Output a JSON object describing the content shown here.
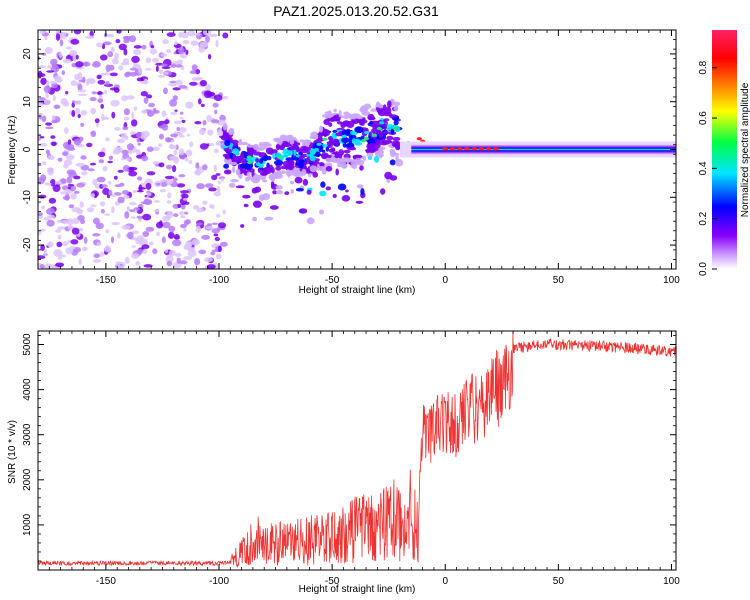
{
  "title": "PAZ1.2025.013.20.52.G31",
  "chart_data": [
    {
      "type": "heatmap",
      "xlabel": "Height of straight line (km)",
      "ylabel": "Frequency (Hz)",
      "xlim": [
        -180,
        102
      ],
      "ylim": [
        -25,
        25
      ],
      "xticks": [
        -150,
        -100,
        -50,
        0,
        50,
        100
      ],
      "yticks": [
        -20,
        -10,
        0,
        10,
        20
      ],
      "colorbar": {
        "label": "Normalized spectral amplitude",
        "range": [
          0,
          0.95
        ],
        "ticks": [
          0.0,
          0.2,
          0.4,
          0.6,
          0.8
        ],
        "tick_labels": [
          "0.0",
          "0.2",
          "0.4",
          "0.6",
          "0.8"
        ],
        "colors": [
          "#ffffff",
          "#cc99ff",
          "#8800ff",
          "#0000ff",
          "#00e5ff",
          "#00ff44",
          "#ffff00",
          "#ff8800",
          "#ff0000",
          "#ff2266"
        ]
      },
      "ridge": {
        "x": [
          -98,
          -90,
          -80,
          -70,
          -60,
          -50,
          -40,
          -30,
          -25,
          -20,
          -10,
          0,
          10,
          20,
          30,
          50,
          80,
          102
        ],
        "y": [
          2,
          -2,
          -3,
          -1,
          -2,
          3,
          2,
          4,
          6,
          3,
          1,
          1,
          0,
          0,
          0,
          0,
          0,
          0
        ]
      },
      "grid": false
    },
    {
      "type": "line",
      "xlabel": "Height of straight line (km)",
      "ylabel": "SNR (10 * v/v)",
      "xlim": [
        -180,
        102
      ],
      "ylim": [
        0,
        5300
      ],
      "xticks": [
        -150,
        -100,
        -50,
        0,
        50,
        100
      ],
      "yticks": [
        1000,
        2000,
        3000,
        4000,
        5000
      ],
      "color": "#ee3333",
      "envelope": {
        "x": [
          -180,
          -100,
          -95,
          -90,
          -85,
          -80,
          -70,
          -60,
          -50,
          -40,
          -30,
          -25,
          -20,
          -15,
          -12,
          -10,
          -8,
          -5,
          0,
          5,
          10,
          15,
          20,
          25,
          30,
          40,
          50,
          60,
          70,
          80,
          90,
          102
        ],
        "y": [
          150,
          150,
          180,
          400,
          700,
          650,
          600,
          700,
          750,
          950,
          1000,
          1100,
          1200,
          1400,
          1000,
          3600,
          3100,
          3400,
          3600,
          3450,
          3900,
          3800,
          4200,
          4400,
          4900,
          5000,
          5000,
          4980,
          4960,
          4930,
          4880,
          4850
        ]
      },
      "grid": false
    }
  ]
}
